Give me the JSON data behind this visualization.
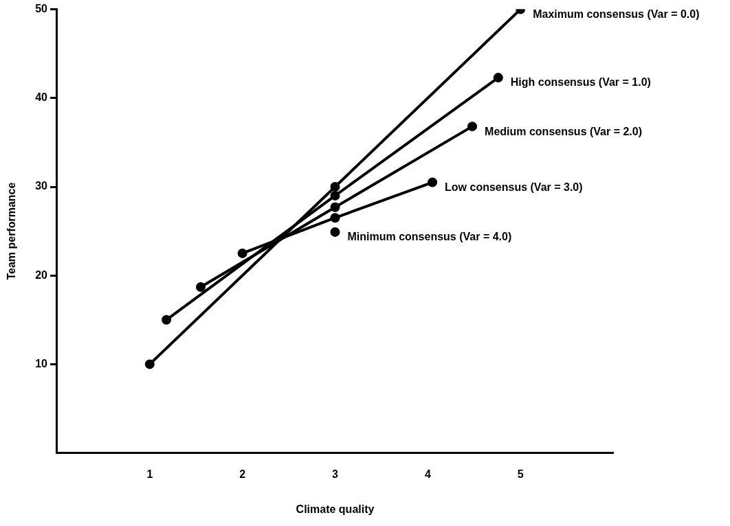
{
  "chart_data": {
    "type": "line",
    "xlabel": "Climate quality",
    "ylabel": "Team performance",
    "xlim": [
      0,
      6
    ],
    "xticks": [
      1,
      2,
      3,
      4,
      5
    ],
    "ylim": [
      0,
      50
    ],
    "yticks": [
      10,
      20,
      30,
      40,
      50
    ],
    "grid": false,
    "legend": false,
    "marker": "circle",
    "line_style": "solid",
    "series": [
      {
        "name": "Maximum consensus (Var = 0.0)",
        "color": "#000000",
        "x": [
          1,
          3,
          5
        ],
        "values": [
          10,
          30,
          50
        ]
      },
      {
        "name": "High consensus (Var = 1.0)",
        "color": "#000000",
        "x": [
          1.18,
          3,
          4.76
        ],
        "values": [
          15,
          29,
          42.3
        ]
      },
      {
        "name": "Medium consensus (Var = 2.0)",
        "color": "#000000",
        "x": [
          1.55,
          3,
          4.48
        ],
        "values": [
          18.7,
          27.7,
          36.8
        ]
      },
      {
        "name": "Low consensus (Var = 3.0)",
        "color": "#000000",
        "x": [
          2,
          3,
          4.05
        ],
        "values": [
          22.5,
          26.5,
          30.5
        ]
      },
      {
        "name": "Minimum consensus (Var = 4.0)",
        "color": "#000000",
        "type": "scatter",
        "x": [
          3
        ],
        "values": [
          24.9
        ]
      }
    ]
  }
}
